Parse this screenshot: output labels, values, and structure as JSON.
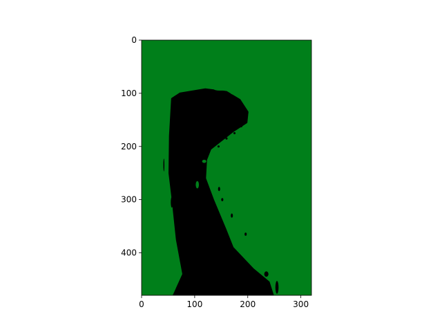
{
  "chart_data": {
    "type": "heatmap",
    "title": "",
    "xlabel": "",
    "ylabel": "",
    "image_size": {
      "width": 320,
      "height": 480
    },
    "xlim": [
      0,
      320
    ],
    "ylim": [
      480,
      0
    ],
    "x_ticks": [
      0,
      100,
      200,
      300
    ],
    "y_ticks": [
      0,
      100,
      200,
      300,
      400
    ],
    "x_tick_labels": [
      "0",
      "100",
      "200",
      "300"
    ],
    "y_tick_labels": [
      "0",
      "100",
      "200",
      "300",
      "400"
    ],
    "grid": false,
    "legend": "none",
    "classes": [
      {
        "value": 0,
        "color": "#000000"
      },
      {
        "value": 1,
        "color": "#007f1a"
      }
    ],
    "background_class": 1,
    "foreground_region": {
      "class": 0,
      "boundary": [
        [
          60,
          480
        ],
        [
          78,
          440
        ],
        [
          66,
          375
        ],
        [
          58,
          300
        ],
        [
          52,
          250
        ],
        [
          53,
          180
        ],
        [
          57,
          110
        ],
        [
          72,
          100
        ],
        [
          120,
          92
        ],
        [
          160,
          97
        ],
        [
          185,
          112
        ],
        [
          200,
          135
        ],
        [
          198,
          155
        ],
        [
          172,
          172
        ],
        [
          130,
          205
        ],
        [
          122,
          225
        ],
        [
          120,
          260
        ],
        [
          135,
          300
        ],
        [
          158,
          355
        ],
        [
          172,
          390
        ],
        [
          210,
          430
        ],
        [
          240,
          455
        ],
        [
          248,
          480
        ]
      ]
    },
    "background_islands": [
      {
        "cx": 148,
        "cy": 92,
        "rx": 12,
        "ry": 3
      },
      {
        "cx": 178,
        "cy": 100,
        "rx": 10,
        "ry": 3
      },
      {
        "cx": 118,
        "cy": 228,
        "rx": 4,
        "ry": 3
      },
      {
        "cx": 105,
        "cy": 272,
        "rx": 3,
        "ry": 7
      }
    ],
    "foreground_islands": [
      {
        "cx": 42,
        "cy": 235,
        "rx": 1,
        "ry": 12
      },
      {
        "cx": 57,
        "cy": 305,
        "rx": 2,
        "ry": 10
      },
      {
        "cx": 68,
        "cy": 345,
        "rx": 3,
        "ry": 14
      },
      {
        "cx": 79,
        "cy": 385,
        "rx": 2,
        "ry": 12
      },
      {
        "cx": 83,
        "cy": 420,
        "rx": 2,
        "ry": 9
      },
      {
        "cx": 92,
        "cy": 455,
        "rx": 2,
        "ry": 9
      },
      {
        "cx": 146,
        "cy": 280,
        "rx": 2,
        "ry": 4
      },
      {
        "cx": 152,
        "cy": 300,
        "rx": 2,
        "ry": 3
      },
      {
        "cx": 170,
        "cy": 330,
        "rx": 2,
        "ry": 4
      },
      {
        "cx": 196,
        "cy": 365,
        "rx": 2,
        "ry": 3
      },
      {
        "cx": 235,
        "cy": 440,
        "rx": 4,
        "ry": 5
      },
      {
        "cx": 255,
        "cy": 465,
        "rx": 3,
        "ry": 12
      },
      {
        "cx": 187,
        "cy": 162,
        "rx": 3,
        "ry": 2
      },
      {
        "cx": 175,
        "cy": 175,
        "rx": 2,
        "ry": 2
      },
      {
        "cx": 160,
        "cy": 185,
        "rx": 2,
        "ry": 2
      },
      {
        "cx": 145,
        "cy": 200,
        "rx": 2,
        "ry": 2
      }
    ]
  }
}
